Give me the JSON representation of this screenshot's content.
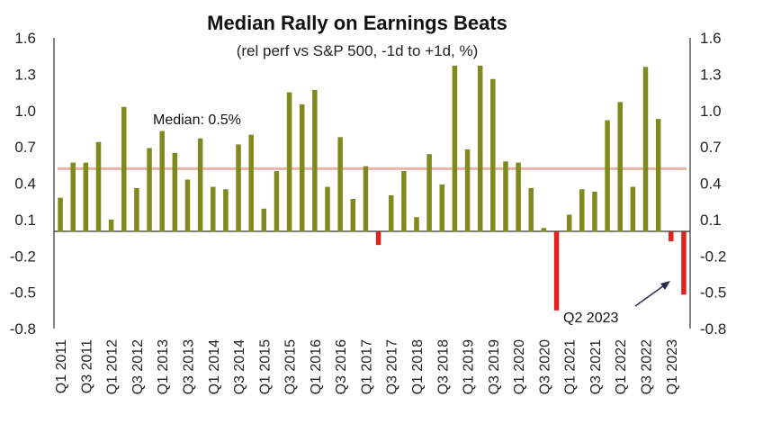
{
  "chart_data": {
    "type": "bar",
    "title": "Median Rally on Earnings Beats",
    "subtitle": "(rel perf vs S&P 500, -1d to +1d, %)",
    "ylim": [
      -0.8,
      1.6
    ],
    "yticks": [
      -0.8,
      -0.5,
      -0.2,
      0.1,
      0.4,
      0.7,
      1.0,
      1.3,
      1.6
    ],
    "ytick_labels": [
      "-0.8",
      "-0.5",
      "-0.2",
      "0.1",
      "0.4",
      "0.7",
      "1.0",
      "1.3",
      "1.6"
    ],
    "xtick_labels": [
      "Q1 2011",
      "Q3 2011",
      "Q1 2012",
      "Q3 2012",
      "Q1 2013",
      "Q3 2013",
      "Q1 2014",
      "Q3 2014",
      "Q1 2015",
      "Q3 2015",
      "Q1 2016",
      "Q3 2016",
      "Q1 2017",
      "Q3 2017",
      "Q1 2018",
      "Q3 2018",
      "Q1 2019",
      "Q3 2019",
      "Q1 2020",
      "Q3 2020",
      "Q1 2021",
      "Q3 2021",
      "Q1 2022",
      "Q3 2022",
      "Q1 2023"
    ],
    "values": [
      0.28,
      0.57,
      0.57,
      0.74,
      0.1,
      1.03,
      0.36,
      0.69,
      0.83,
      0.65,
      0.43,
      0.77,
      0.37,
      0.35,
      0.72,
      0.8,
      0.19,
      0.5,
      1.15,
      1.05,
      1.17,
      0.37,
      0.78,
      0.27,
      0.54,
      -0.11,
      0.3,
      0.5,
      0.12,
      0.64,
      0.39,
      1.37,
      0.68,
      1.37,
      1.26,
      0.58,
      0.57,
      0.36,
      0.03,
      -0.65,
      0.14,
      0.35,
      0.33,
      0.92,
      1.07,
      0.37,
      1.36,
      0.93,
      -0.08,
      -0.52
    ],
    "median": {
      "value": 0.52,
      "label": "Median: 0.5%"
    },
    "annotation": {
      "label": "Q2 2023"
    },
    "colors": {
      "positive": "#7f8a1e",
      "negative": "#e0231f",
      "median_line": "#e8b4aa",
      "axis": "#333333"
    },
    "grid": false
  }
}
